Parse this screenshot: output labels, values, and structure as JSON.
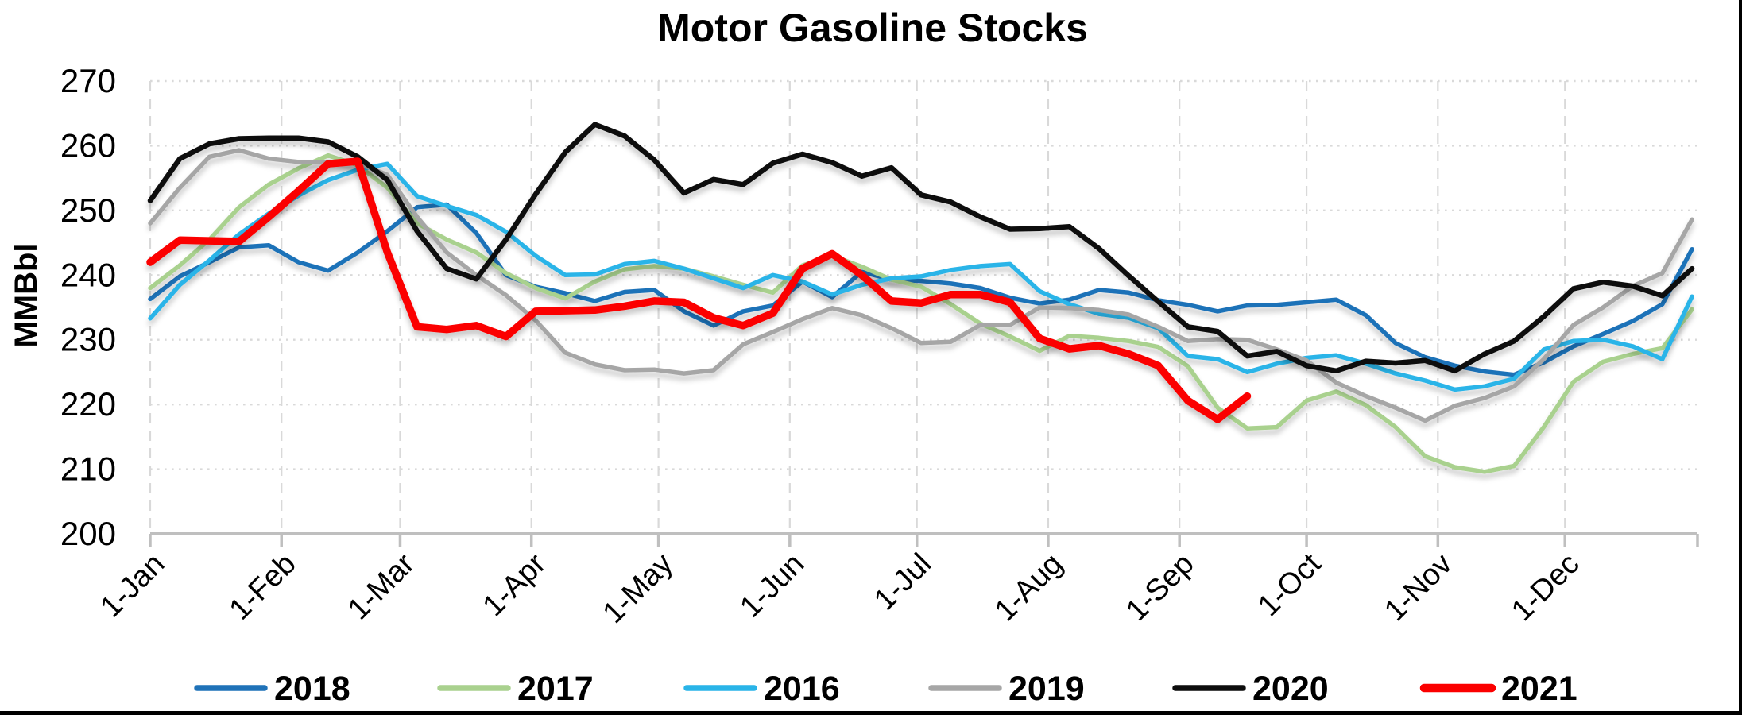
{
  "chart_data": {
    "type": "line",
    "title": "Motor Gasoline Stocks",
    "ylabel": "MMBbl",
    "ylim": [
      200,
      270
    ],
    "y_ticks": [
      270,
      260,
      250,
      240,
      230,
      220,
      210,
      200
    ],
    "x_tick_labels": [
      "1-Jan",
      "1-Feb",
      "1-Mar",
      "1-Apr",
      "1-May",
      "1-Jun",
      "1-Jul",
      "1-Aug",
      "1-Sep",
      "1-Oct",
      "1-Nov",
      "1-Dec"
    ],
    "month_start_days": [
      0,
      31,
      59,
      90,
      120,
      151,
      181,
      212,
      243,
      273,
      304,
      334
    ],
    "x_domain_days": [
      0,
      365
    ],
    "sample_step_days": 7,
    "grid": {
      "horizontal": "dotted",
      "vertical": "dashed",
      "gridline_color": "#D9D9D9",
      "axis_line_color": "#BFBFBF"
    },
    "legend_position": "bottom",
    "series": [
      {
        "name": "2018",
        "color": "#1F72B8",
        "width": 5.5,
        "values": [
          236.3,
          239.8,
          242,
          244.3,
          244.6,
          242,
          240.7,
          243.5,
          246.8,
          250.5,
          250.9,
          246.5,
          240,
          238.2,
          237.2,
          236,
          237.4,
          237.7,
          234.4,
          232.2,
          234.4,
          235.3,
          239,
          236.6,
          240.5,
          239.3,
          239.1,
          238.7,
          238,
          236.5,
          235.6,
          236.2,
          237.7,
          237.3,
          236.1,
          235.4,
          234.4,
          235.3,
          235.4,
          235.8,
          236.2,
          233.8,
          229.5,
          227.3,
          226,
          225.1,
          224.6,
          226.5,
          229,
          230.9,
          232.9,
          235.5,
          244
        ]
      },
      {
        "name": "2017",
        "color": "#A9D18E",
        "width": 5.5,
        "values": [
          238,
          241.5,
          245.5,
          250.5,
          254,
          256.5,
          258.5,
          257,
          253.5,
          248,
          245.5,
          243.5,
          240.3,
          238,
          236.4,
          239,
          240.9,
          241.4,
          241,
          239.8,
          238.5,
          237.3,
          241.5,
          243,
          241.3,
          239.3,
          238.2,
          235.5,
          232.5,
          230.5,
          228.3,
          230.6,
          230.3,
          229.8,
          228.9,
          225.9,
          219.5,
          216.3,
          216.5,
          220.6,
          222,
          219.9,
          216.5,
          212,
          210.3,
          209.6,
          210.5,
          216.5,
          223.5,
          226.6,
          227.8,
          228.7,
          234.7
        ]
      },
      {
        "name": "2016",
        "color": "#29B4E8",
        "width": 5.5,
        "values": [
          233.3,
          238.5,
          242.3,
          246.3,
          249.5,
          252.3,
          254.7,
          256.3,
          257.2,
          252.2,
          250.7,
          249.3,
          246.7,
          243,
          240,
          240.1,
          241.7,
          242.2,
          241,
          239.5,
          238,
          240,
          239,
          237,
          238.5,
          239.5,
          239.8,
          240.8,
          241.4,
          241.7,
          237.5,
          235.5,
          234,
          233.4,
          231.8,
          227.5,
          227,
          225,
          226.3,
          227.2,
          227.6,
          226.3,
          224.8,
          223.7,
          222.3,
          222.8,
          224,
          228.5,
          229.8,
          230,
          229,
          227,
          236.7
        ]
      },
      {
        "name": "2019",
        "color": "#A6A6A6",
        "width": 5.5,
        "values": [
          248,
          253.5,
          258.3,
          259.3,
          258,
          257.5,
          257.5,
          257.3,
          255.5,
          249,
          243.5,
          240,
          236.9,
          233,
          228,
          226.2,
          225.3,
          225.4,
          224.8,
          225.3,
          229.3,
          231.2,
          233.2,
          234.9,
          233.8,
          231.8,
          229.5,
          229.7,
          232.3,
          232.3,
          235,
          234.9,
          234.6,
          233.9,
          232,
          229.8,
          230.1,
          230,
          228.5,
          226.8,
          223.4,
          221.3,
          219.5,
          217.5,
          219.8,
          221,
          222.8,
          227,
          232.3,
          235,
          238.3,
          240.3,
          248.6
        ]
      },
      {
        "name": "2020",
        "color": "#0D0D0D",
        "width": 6.5,
        "values": [
          251.5,
          258,
          260.3,
          261.1,
          261.2,
          261.2,
          260.6,
          258.3,
          254.7,
          246.8,
          241,
          239.4,
          245.5,
          252.5,
          259,
          263.3,
          261.5,
          257.8,
          252.7,
          254.8,
          254,
          257.3,
          258.7,
          257.4,
          255.3,
          256.6,
          252.4,
          251.3,
          249,
          247.1,
          247.2,
          247.5,
          244.1,
          239.9,
          235.9,
          232,
          231.3,
          227.5,
          228.2,
          226,
          225.2,
          226.7,
          226.4,
          226.8,
          225.2,
          227.8,
          229.8,
          233.6,
          237.9,
          238.9,
          238.3,
          236.8,
          241
        ]
      },
      {
        "name": "2021",
        "color": "#FB0000",
        "width": 9.5,
        "values": [
          242,
          245.4,
          245.3,
          245.2,
          249,
          253,
          257.2,
          257.6,
          243.5,
          232,
          231.6,
          232.2,
          230.5,
          234.4,
          234.5,
          234.6,
          235.2,
          236,
          235.8,
          233.4,
          232.2,
          234.1,
          241,
          243.3,
          240,
          236,
          235.7,
          237,
          237,
          235.8,
          230.2,
          228.6,
          229.1,
          227.8,
          226,
          220.6,
          217.7,
          221.3
        ]
      }
    ],
    "legend": [
      "2018",
      "2017",
      "2016",
      "2019",
      "2020",
      "2021"
    ]
  }
}
